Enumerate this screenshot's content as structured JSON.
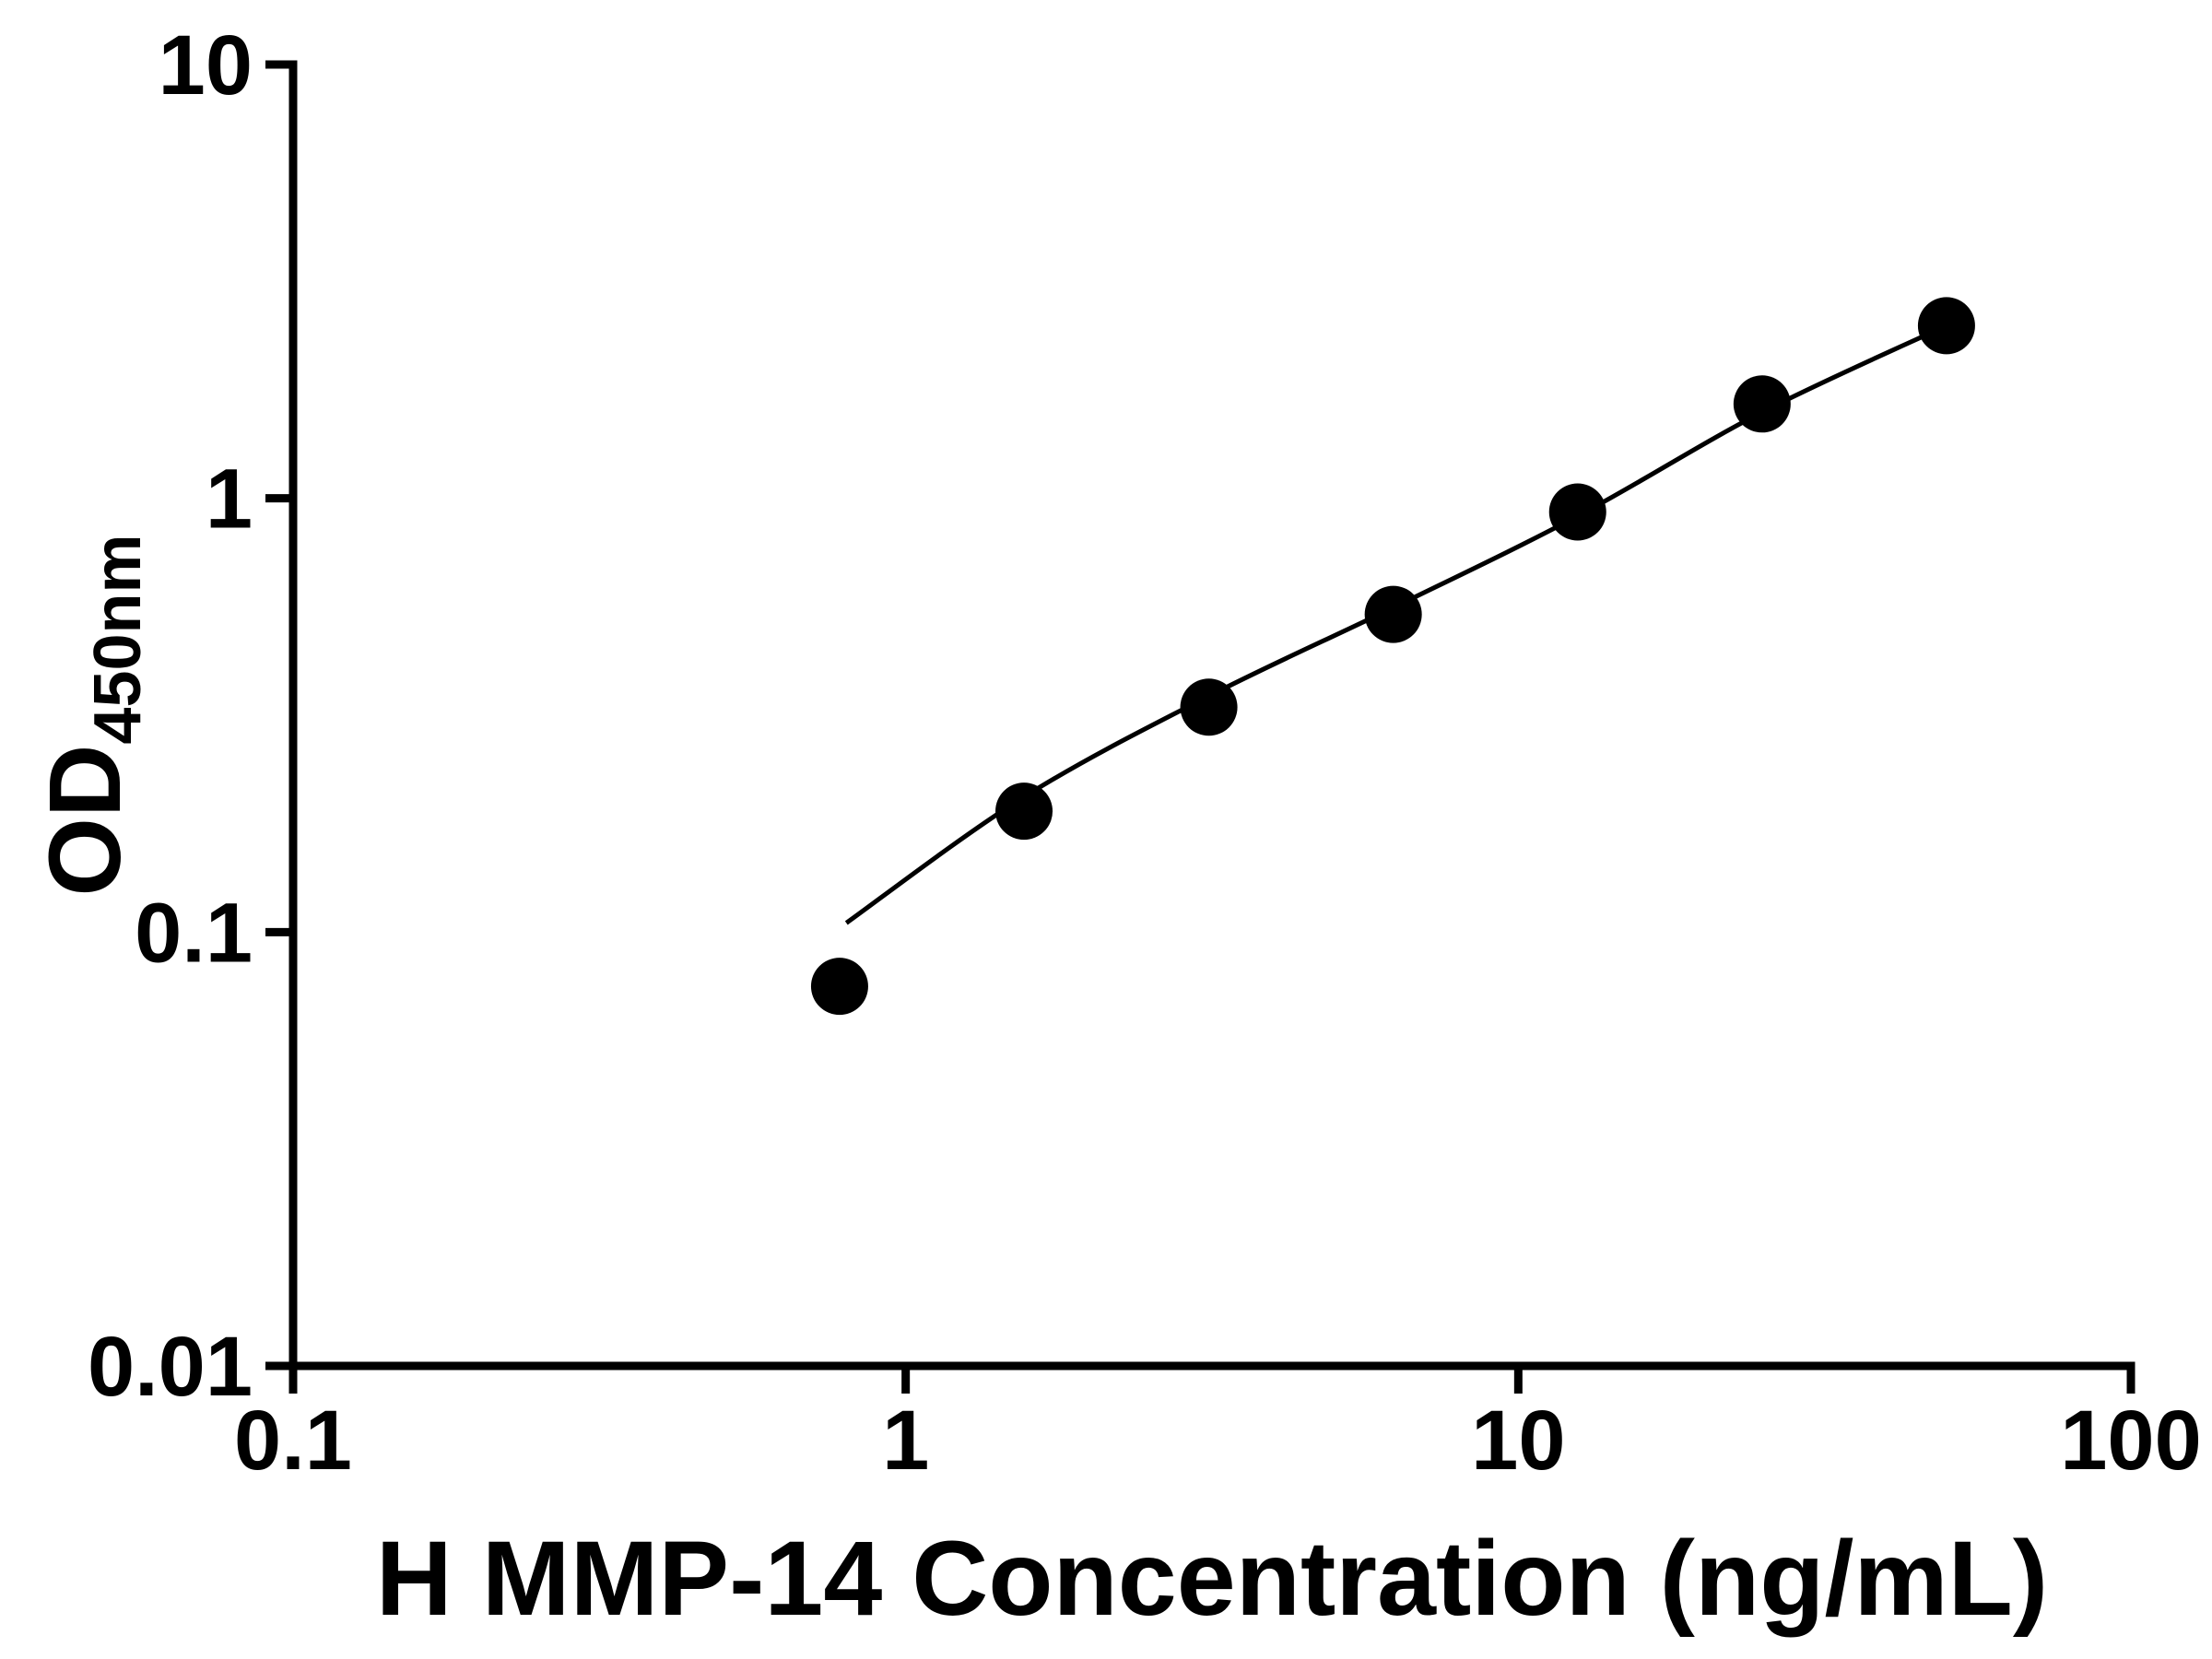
{
  "page": {
    "background": "#ffffff"
  },
  "chart_data": {
    "type": "scatter",
    "title": "",
    "xlabel": "H MMP-14 Concentration (ng/mL)",
    "ylabel_main": "OD",
    "ylabel_sub": "450nm",
    "x_scale": "log",
    "y_scale": "log",
    "xlim": [
      0.1,
      100
    ],
    "ylim": [
      0.01,
      10
    ],
    "x_ticks": [
      0.1,
      1,
      10,
      100
    ],
    "x_tick_labels": [
      "0.1",
      "1",
      "10",
      "100"
    ],
    "y_ticks": [
      0.01,
      0.1,
      1,
      10
    ],
    "y_tick_labels": [
      "0.01",
      "0.1",
      "1",
      "10"
    ],
    "grid": false,
    "legend": null,
    "marker_color": "#000000",
    "line_color": "#000000",
    "axis_color": "#000000",
    "points": {
      "x": [
        0.78,
        1.56,
        3.125,
        6.25,
        12.5,
        25,
        50
      ],
      "y": [
        0.075,
        0.19,
        0.33,
        0.54,
        0.93,
        1.65,
        2.5
      ]
    },
    "fit_curve": {
      "x": [
        0.8,
        1.56,
        3.125,
        6.25,
        12.5,
        25,
        50
      ],
      "y": [
        0.105,
        0.205,
        0.35,
        0.56,
        0.91,
        1.58,
        2.5
      ]
    }
  }
}
